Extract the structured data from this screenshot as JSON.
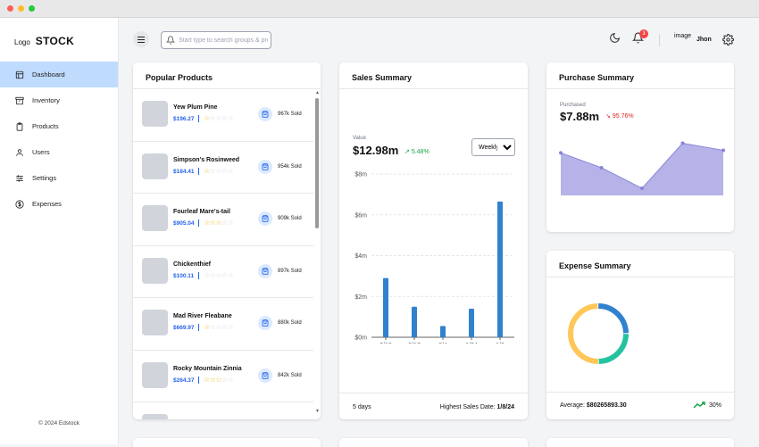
{
  "brand": {
    "logo": "Logo",
    "name": "STOCK"
  },
  "sidebar": {
    "items": [
      {
        "label": "Dashboard",
        "icon": "layout-icon",
        "active": true
      },
      {
        "label": "Inventory",
        "icon": "archive-icon",
        "active": false
      },
      {
        "label": "Products",
        "icon": "clipboard-icon",
        "active": false
      },
      {
        "label": "Users",
        "icon": "user-icon",
        "active": false
      },
      {
        "label": "Settings",
        "icon": "sliders-icon",
        "active": false
      },
      {
        "label": "Expenses",
        "icon": "dollar-circle-icon",
        "active": false
      }
    ],
    "footer": "© 2024 Edstock"
  },
  "header": {
    "search_placeholder": "Start type to search groups & products",
    "notification_count": "3",
    "user_image": "image",
    "user_name": "Jhon"
  },
  "popular": {
    "title": "Popular Products",
    "products": [
      {
        "name": "Yew Plum Pine",
        "price": "$196.27",
        "rating": 1,
        "sold": "967k Sold"
      },
      {
        "name": "Simpson's Rosinweed",
        "price": "$184.41",
        "rating": 1,
        "sold": "954k Sold"
      },
      {
        "name": "Fourleaf Mare's-tail",
        "price": "$905.04",
        "rating": 3,
        "sold": "909k Sold"
      },
      {
        "name": "Chickenthief",
        "price": "$100.11",
        "rating": 0,
        "sold": "897k Sold"
      },
      {
        "name": "Mad River Fleabane",
        "price": "$669.97",
        "rating": 1,
        "sold": "880k Sold"
      },
      {
        "name": "Rocky Mountain Zinnia",
        "price": "$264.37",
        "rating": 3,
        "sold": "842k Sold"
      }
    ]
  },
  "sales": {
    "title": "Sales Summary",
    "value_label": "Value",
    "value": "$12.98m",
    "change": "5.48%",
    "period": "Weekly",
    "period_options": [
      "Daily",
      "Weekly",
      "Monthly"
    ],
    "footer_days": "5 days",
    "footer_highest_label": "Highest Sales Date:",
    "footer_highest_value": "1/8/24"
  },
  "purchase": {
    "title": "Purchase Summary",
    "label": "Purchased",
    "value": "$7.88m",
    "change": "95.76%"
  },
  "expense": {
    "title": "Expense Summary",
    "average_label": "Average:",
    "average_value": "$80265893.30",
    "change": "30%"
  },
  "colors": {
    "accent": "#2563eb",
    "bar": "#3182ce",
    "area": "#8884d8",
    "positive": "#16a34a",
    "negative": "#dc2626"
  },
  "chart_data": [
    {
      "type": "bar",
      "categories": [
        "3/13",
        "2/17",
        "2/4",
        "1/24",
        "1/8"
      ],
      "values": [
        2.9,
        1.5,
        0.55,
        1.4,
        6.65
      ],
      "ylim": [
        0,
        8
      ],
      "yticks": [
        "$0m",
        "$2m",
        "$4m",
        "$6m",
        "$8m"
      ],
      "grid": true
    },
    {
      "type": "area",
      "values": [
        6.6,
        4.3,
        1.1,
        8.1,
        7.0
      ],
      "ylim": [
        0,
        9
      ],
      "grid": false
    },
    {
      "type": "pie",
      "values": [
        {
          "color": "#ffc658",
          "share": 0.5
        },
        {
          "color": "#3182ce",
          "share": 0.25
        },
        {
          "color": "#25c2a0",
          "share": 0.25
        }
      ]
    }
  ]
}
